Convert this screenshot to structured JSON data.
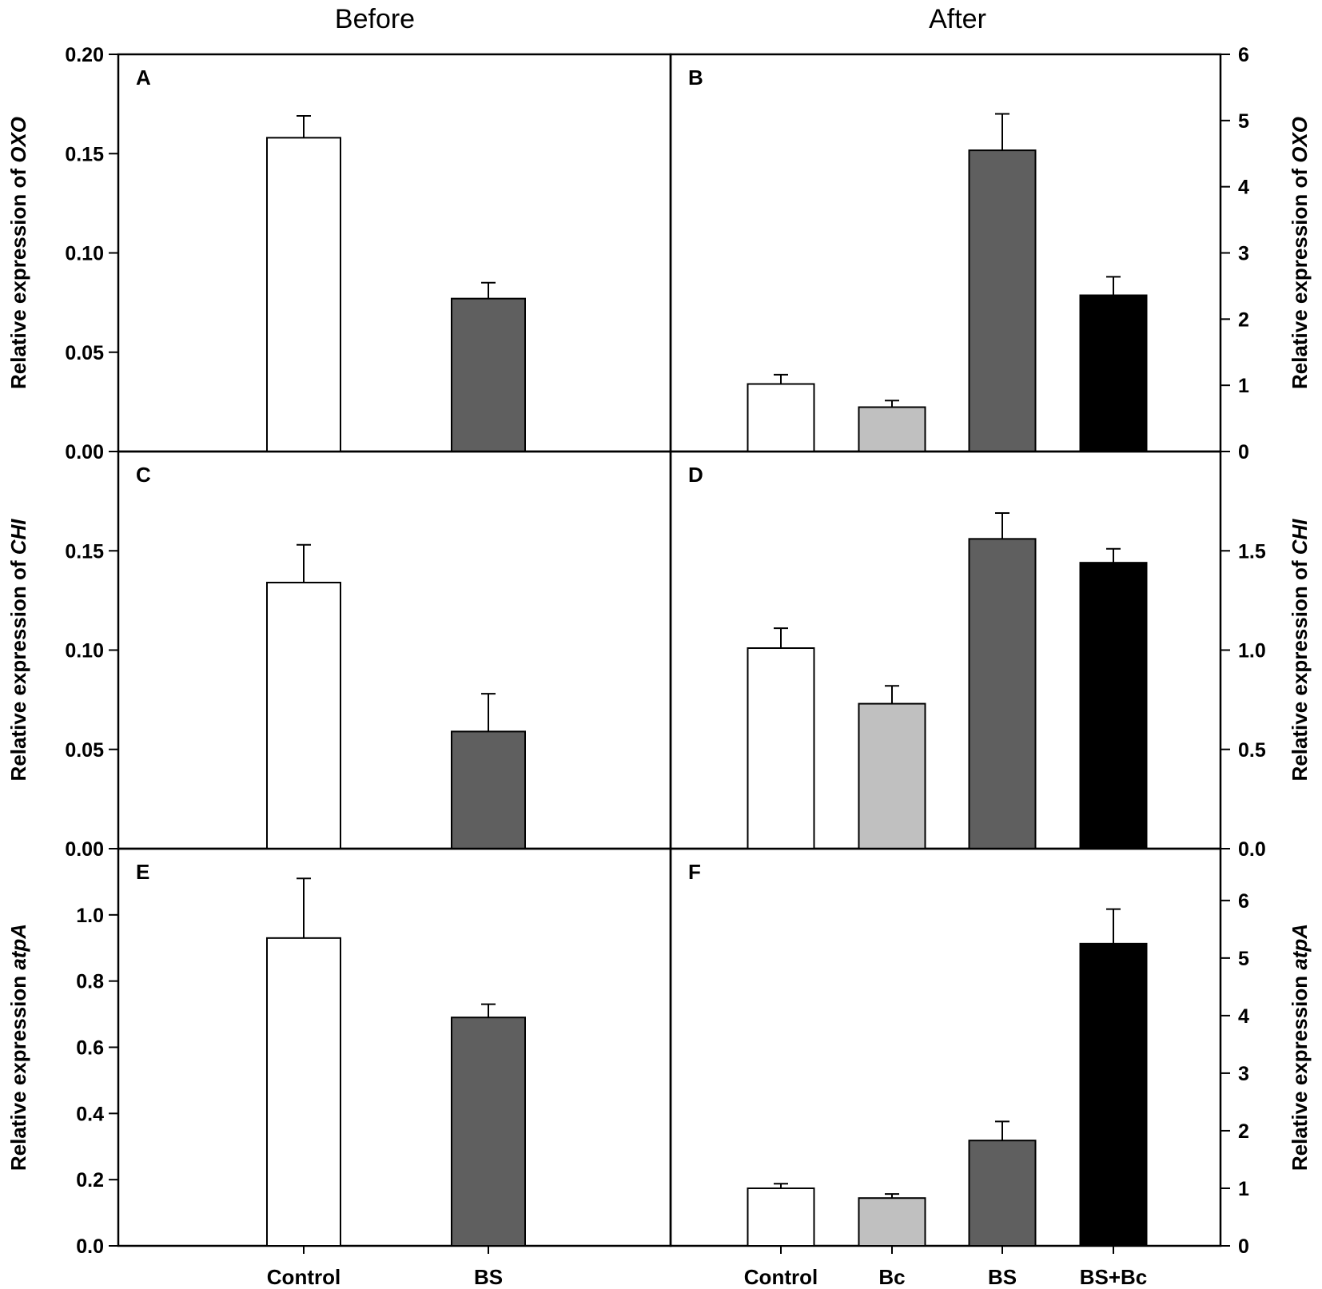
{
  "figure": {
    "column_titles": [
      "Before",
      "After"
    ],
    "colors": {
      "Control": "#ffffff",
      "Bc": "#c0c0c0",
      "BS": "#5f5f5f",
      "BS+Bc": "#000000",
      "axis": "#000000"
    }
  },
  "chart_data": [
    {
      "id": "A",
      "type": "bar",
      "column": "Before",
      "row": 0,
      "title": "",
      "ylabel": "Relative expression of ",
      "ylabel_gene": "OXO",
      "ylim": [
        0,
        0.2
      ],
      "yticks": [
        0,
        0.05,
        0.1,
        0.15,
        0.2
      ],
      "ytick_labels": [
        "0.00",
        "0.05",
        "0.10",
        "0.15",
        "0.20"
      ],
      "categories": [
        "Control",
        "BS"
      ],
      "values": [
        0.158,
        0.077
      ],
      "errors": [
        0.011,
        0.008
      ]
    },
    {
      "id": "B",
      "type": "bar",
      "column": "After",
      "row": 0,
      "title": "",
      "ylabel": "Relative expression of ",
      "ylabel_gene": "OXO",
      "ylim": [
        0,
        6
      ],
      "yticks": [
        0,
        1,
        2,
        3,
        4,
        5,
        6
      ],
      "ytick_labels": [
        "0",
        "1",
        "2",
        "3",
        "4",
        "5",
        "6"
      ],
      "categories": [
        "Control",
        "Bc",
        "BS",
        "BS+Bc"
      ],
      "values": [
        1.02,
        0.67,
        4.55,
        2.36
      ],
      "errors": [
        0.14,
        0.1,
        0.55,
        0.28
      ]
    },
    {
      "id": "C",
      "type": "bar",
      "column": "Before",
      "row": 1,
      "title": "",
      "ylabel": "Relative expression of ",
      "ylabel_gene": "CHI",
      "ylim": [
        0,
        0.2
      ],
      "yticks": [
        0,
        0.05,
        0.1,
        0.15
      ],
      "ytick_labels": [
        "0.00",
        "0.05",
        "0.10",
        "0.15"
      ],
      "categories": [
        "Control",
        "BS"
      ],
      "values": [
        0.134,
        0.059
      ],
      "errors": [
        0.019,
        0.019
      ]
    },
    {
      "id": "D",
      "type": "bar",
      "column": "After",
      "row": 1,
      "title": "",
      "ylabel": "Relative expression of ",
      "ylabel_gene": "CHI",
      "ylim": [
        0,
        2.0
      ],
      "yticks": [
        0,
        0.5,
        1,
        1.5
      ],
      "ytick_labels": [
        "0.0",
        "0.5",
        "1.0",
        "1.5"
      ],
      "categories": [
        "Control",
        "Bc",
        "BS",
        "BS+Bc"
      ],
      "values": [
        1.01,
        0.73,
        1.56,
        1.44
      ],
      "errors": [
        0.1,
        0.09,
        0.13,
        0.07
      ]
    },
    {
      "id": "E",
      "type": "bar",
      "column": "Before",
      "row": 2,
      "title": "",
      "ylabel": "Relative expression ",
      "ylabel_gene": "atpA",
      "ylim": [
        0,
        1.2
      ],
      "yticks": [
        0,
        0.2,
        0.4,
        0.6,
        0.8,
        1.0
      ],
      "ytick_labels": [
        "0.0",
        "0.2",
        "0.4",
        "0.6",
        "0.8",
        "1.0"
      ],
      "categories": [
        "Control",
        "BS"
      ],
      "values": [
        0.93,
        0.69
      ],
      "errors": [
        0.18,
        0.04
      ]
    },
    {
      "id": "F",
      "type": "bar",
      "column": "After",
      "row": 2,
      "title": "",
      "ylabel": "Relative expression ",
      "ylabel_gene": "atpA",
      "ylim": [
        0,
        6.9
      ],
      "yticks": [
        0,
        1,
        2,
        3,
        4,
        5,
        6
      ],
      "ytick_labels": [
        "0",
        "1",
        "2",
        "3",
        "4",
        "5",
        "6"
      ],
      "categories": [
        "Control",
        "Bc",
        "BS",
        "BS+Bc"
      ],
      "values": [
        1.0,
        0.83,
        1.83,
        5.25
      ],
      "errors": [
        0.08,
        0.07,
        0.33,
        0.6
      ]
    }
  ]
}
